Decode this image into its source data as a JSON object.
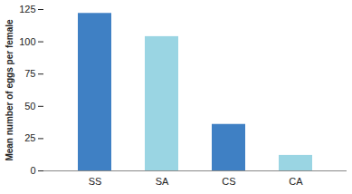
{
  "chart_data": {
    "type": "bar",
    "y_label": "Mean number of eggs per female",
    "categories": [
      "SS",
      "SA",
      "CS",
      "CA"
    ],
    "values": [
      122,
      104,
      36,
      12
    ],
    "colors": [
      "#3f80c4",
      "#9ad5e3",
      "#3f80c4",
      "#9ad5e3"
    ],
    "ylim": [
      0,
      125
    ],
    "yticks": [
      0,
      25,
      50,
      75,
      100,
      125
    ],
    "grid": false
  }
}
